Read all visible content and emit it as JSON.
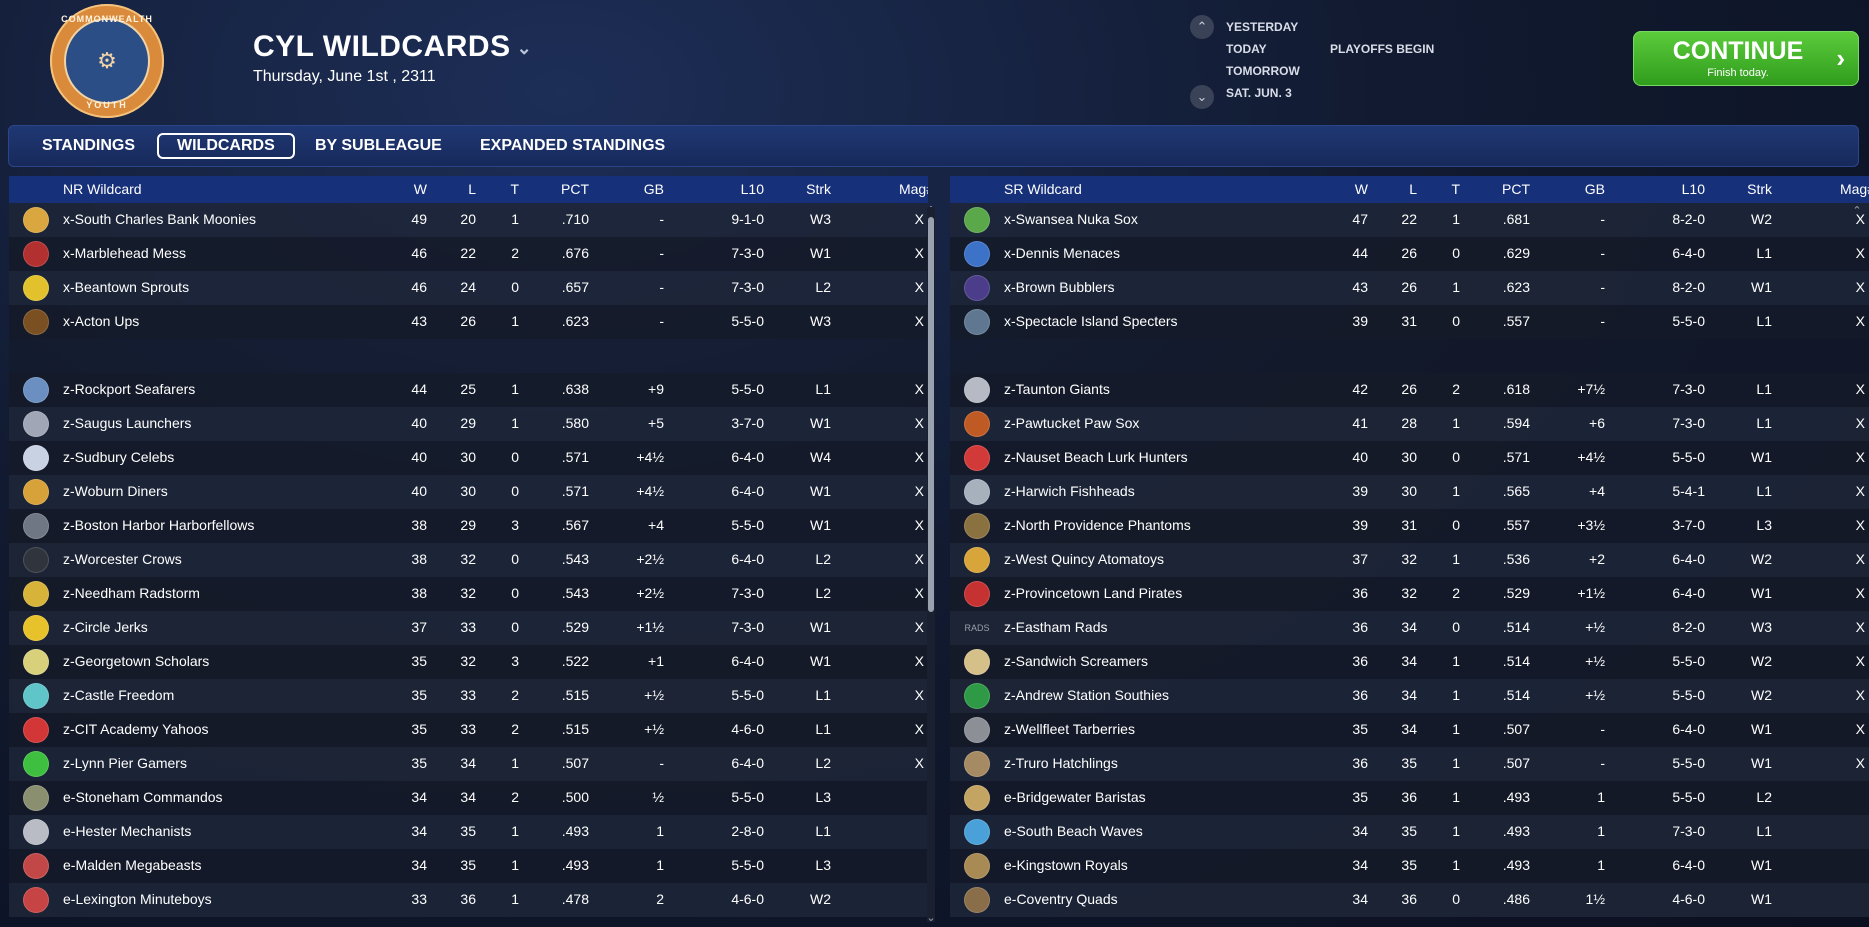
{
  "header": {
    "title": "CYL WILDCARDS",
    "date": "Thursday, June 1st , 2311",
    "logo": {
      "top_text": "COMMONWEALTH",
      "bottom_text": "YOUTH",
      "icon": "eagle-seal-icon"
    }
  },
  "day_nav": {
    "days": [
      "YESTERDAY",
      "TODAY",
      "TOMORROW",
      "SAT. JUN. 3"
    ],
    "today_event": "PLAYOFFS BEGIN"
  },
  "continue": {
    "label": "CONTINUE",
    "sub": "Finish today."
  },
  "tabs": [
    "STANDINGS",
    "WILDCARDS",
    "BY SUBLEAGUE",
    "EXPANDED STANDINGS"
  ],
  "left": {
    "headers": {
      "team": "NR  Wildcard",
      "w": "W",
      "l": "L",
      "t": "T",
      "pct": "PCT",
      "gb": "GB",
      "l10": "L10",
      "strk": "Strk",
      "mag": "Mag#"
    },
    "rows": [
      {
        "team": "x-South Charles Bank Moonies",
        "w": "49",
        "l": "20",
        "t": "1",
        "pct": ".710",
        "gb": "-",
        "l10": "9-1-0",
        "strk": "W3",
        "mag": "X",
        "icon": "moon-icon",
        "color": "#d9a640"
      },
      {
        "team": "x-Marblehead Mess",
        "w": "46",
        "l": "22",
        "t": "2",
        "pct": ".676",
        "gb": "-",
        "l10": "7-3-0",
        "strk": "W1",
        "mag": "X",
        "icon": "monster-icon",
        "color": "#b23030"
      },
      {
        "team": "x-Beantown Sprouts",
        "w": "46",
        "l": "24",
        "t": "0",
        "pct": ".657",
        "gb": "-",
        "l10": "7-3-0",
        "strk": "L2",
        "mag": "X",
        "icon": "sprout-icon",
        "color": "#e2c22c"
      },
      {
        "team": "x-Acton Ups",
        "w": "43",
        "l": "26",
        "t": "1",
        "pct": ".623",
        "gb": "-",
        "l10": "5-5-0",
        "strk": "W3",
        "mag": "X",
        "icon": "ups-shield-icon",
        "color": "#7a4f22"
      },
      {
        "team": "z-Rockport Seafarers",
        "w": "44",
        "l": "25",
        "t": "1",
        "pct": ".638",
        "gb": "+9",
        "l10": "5-5-0",
        "strk": "L1",
        "mag": "X",
        "icon": "anchor-icon",
        "color": "#6a8fc0"
      },
      {
        "team": "z-Saugus Launchers",
        "w": "40",
        "l": "29",
        "t": "1",
        "pct": ".580",
        "gb": "+5",
        "l10": "3-7-0",
        "strk": "W1",
        "mag": "X",
        "icon": "rocket-icon",
        "color": "#a0a6b5"
      },
      {
        "team": "z-Sudbury Celebs",
        "w": "40",
        "l": "30",
        "t": "0",
        "pct": ".571",
        "gb": "+4½",
        "l10": "6-4-0",
        "strk": "W4",
        "mag": "X",
        "icon": "star-icon",
        "color": "#c9d2e3"
      },
      {
        "team": "z-Woburn Diners",
        "w": "40",
        "l": "30",
        "t": "0",
        "pct": ".571",
        "gb": "+4½",
        "l10": "6-4-0",
        "strk": "W1",
        "mag": "X",
        "icon": "diner-icon",
        "color": "#d8a23a"
      },
      {
        "team": "z-Boston Harbor Harborfellows",
        "w": "38",
        "l": "29",
        "t": "3",
        "pct": ".567",
        "gb": "+4",
        "l10": "5-5-0",
        "strk": "W1",
        "mag": "X",
        "icon": "harbor-icon",
        "color": "#707784"
      },
      {
        "team": "z-Worcester Crows",
        "w": "38",
        "l": "32",
        "t": "0",
        "pct": ".543",
        "gb": "+2½",
        "l10": "6-4-0",
        "strk": "L2",
        "mag": "X",
        "icon": "crow-icon",
        "color": "#30343d"
      },
      {
        "team": "z-Needham Radstorm",
        "w": "38",
        "l": "32",
        "t": "0",
        "pct": ".543",
        "gb": "+2½",
        "l10": "7-3-0",
        "strk": "L2",
        "mag": "X",
        "icon": "radiation-icon",
        "color": "#d7b33a"
      },
      {
        "team": "z-Circle Jerks",
        "w": "37",
        "l": "33",
        "t": "0",
        "pct": ".529",
        "gb": "+1½",
        "l10": "7-3-0",
        "strk": "W1",
        "mag": "X",
        "icon": "circle-c-icon",
        "color": "#e7c22a"
      },
      {
        "team": "z-Georgetown Scholars",
        "w": "35",
        "l": "32",
        "t": "3",
        "pct": ".522",
        "gb": "+1",
        "l10": "6-4-0",
        "strk": "W1",
        "mag": "X",
        "icon": "wing-icon",
        "color": "#d8d07a"
      },
      {
        "team": "z-Castle Freedom",
        "w": "35",
        "l": "33",
        "t": "2",
        "pct": ".515",
        "gb": "+½",
        "l10": "5-5-0",
        "strk": "L1",
        "mag": "X",
        "icon": "tower-icon",
        "color": "#5fc5c8"
      },
      {
        "team": "z-CIT Academy Yahoos",
        "w": "35",
        "l": "33",
        "t": "2",
        "pct": ".515",
        "gb": "+½",
        "l10": "4-6-0",
        "strk": "L1",
        "mag": "X",
        "icon": "skull-icon",
        "color": "#d23636"
      },
      {
        "team": "z-Lynn Pier Gamers",
        "w": "35",
        "l": "34",
        "t": "1",
        "pct": ".507",
        "gb": "-",
        "l10": "6-4-0",
        "strk": "L2",
        "mag": "X",
        "icon": "gamer-icon",
        "color": "#3fbf3f"
      },
      {
        "team": "e-Stoneham Commandos",
        "w": "34",
        "l": "34",
        "t": "2",
        "pct": ".500",
        "gb": "½",
        "l10": "5-5-0",
        "strk": "L3",
        "mag": "",
        "icon": "soldier-icon",
        "color": "#8a8f70"
      },
      {
        "team": "e-Hester Mechanists",
        "w": "34",
        "l": "35",
        "t": "1",
        "pct": ".493",
        "gb": "1",
        "l10": "2-8-0",
        "strk": "L1",
        "mag": "",
        "icon": "robot-icon",
        "color": "#b9bcc4"
      },
      {
        "team": "e-Malden Megabeasts",
        "w": "34",
        "l": "35",
        "t": "1",
        "pct": ".493",
        "gb": "1",
        "l10": "5-5-0",
        "strk": "L3",
        "mag": "",
        "icon": "beast-icon",
        "color": "#c24848"
      },
      {
        "team": "e-Lexington Minuteboys",
        "w": "33",
        "l": "36",
        "t": "1",
        "pct": ".478",
        "gb": "2",
        "l10": "4-6-0",
        "strk": "W2",
        "mag": "",
        "icon": "minuteman-icon",
        "color": "#c74444"
      }
    ]
  },
  "right": {
    "headers": {
      "team": "SR  Wildcard",
      "w": "W",
      "l": "L",
      "t": "T",
      "pct": "PCT",
      "gb": "GB",
      "l10": "L10",
      "strk": "Strk",
      "mag": "Mag#"
    },
    "rows": [
      {
        "team": "x-Swansea Nuka Sox",
        "w": "47",
        "l": "22",
        "t": "1",
        "pct": ".681",
        "gb": "-",
        "l10": "8-2-0",
        "strk": "W2",
        "mag": "X",
        "icon": "lizard-icon",
        "color": "#5aa84a"
      },
      {
        "team": "x-Dennis Menaces",
        "w": "44",
        "l": "26",
        "t": "0",
        "pct": ".629",
        "gb": "-",
        "l10": "6-4-0",
        "strk": "L1",
        "mag": "X",
        "icon": "kid-icon",
        "color": "#3c72c8"
      },
      {
        "team": "x-Brown Bubblers",
        "w": "43",
        "l": "26",
        "t": "1",
        "pct": ".623",
        "gb": "-",
        "l10": "8-2-0",
        "strk": "W1",
        "mag": "X",
        "icon": "b-letter-icon",
        "color": "#4b3d8a"
      },
      {
        "team": "x-Spectacle Island Specters",
        "w": "39",
        "l": "31",
        "t": "0",
        "pct": ".557",
        "gb": "-",
        "l10": "5-5-0",
        "strk": "L1",
        "mag": "X",
        "icon": "ghost-icon",
        "color": "#5f7790"
      },
      {
        "team": "z-Taunton Giants",
        "w": "42",
        "l": "26",
        "t": "2",
        "pct": ".618",
        "gb": "+7½",
        "l10": "7-3-0",
        "strk": "L1",
        "mag": "X",
        "icon": "giant-icon",
        "color": "#b5bac4"
      },
      {
        "team": "z-Pawtucket Paw Sox",
        "w": "41",
        "l": "28",
        "t": "1",
        "pct": ".594",
        "gb": "+6",
        "l10": "7-3-0",
        "strk": "L1",
        "mag": "X",
        "icon": "paw-icon",
        "color": "#c05a24"
      },
      {
        "team": "z-Nauset Beach Lurk Hunters",
        "w": "40",
        "l": "30",
        "t": "0",
        "pct": ".571",
        "gb": "+4½",
        "l10": "5-5-0",
        "strk": "W1",
        "mag": "X",
        "icon": "crab-icon",
        "color": "#d23a3a"
      },
      {
        "team": "z-Harwich Fishheads",
        "w": "39",
        "l": "30",
        "t": "1",
        "pct": ".565",
        "gb": "+4",
        "l10": "5-4-1",
        "strk": "L1",
        "mag": "X",
        "icon": "fish-icon",
        "color": "#a7b0bd"
      },
      {
        "team": "z-North Providence Phantoms",
        "w": "39",
        "l": "31",
        "t": "0",
        "pct": ".557",
        "gb": "+3½",
        "l10": "3-7-0",
        "strk": "L3",
        "mag": "X",
        "icon": "phantom-icon",
        "color": "#8a7140"
      },
      {
        "team": "z-West Quincy Atomatoys",
        "w": "37",
        "l": "32",
        "t": "1",
        "pct": ".536",
        "gb": "+2",
        "l10": "6-4-0",
        "strk": "W2",
        "mag": "X",
        "icon": "toy-robot-icon",
        "color": "#d7a53a"
      },
      {
        "team": "z-Provincetown Land Pirates",
        "w": "36",
        "l": "32",
        "t": "2",
        "pct": ".529",
        "gb": "+1½",
        "l10": "6-4-0",
        "strk": "W1",
        "mag": "X",
        "icon": "pirate-icon",
        "color": "#c63232"
      },
      {
        "team": "z-Eastham Rads",
        "w": "36",
        "l": "34",
        "t": "0",
        "pct": ".514",
        "gb": "+½",
        "l10": "8-2-0",
        "strk": "W3",
        "mag": "X",
        "icon": "rads-wordmark-icon",
        "color": "#9aa0aa",
        "logo_text": "RADS"
      },
      {
        "team": "z-Sandwich Screamers",
        "w": "36",
        "l": "34",
        "t": "1",
        "pct": ".514",
        "gb": "+½",
        "l10": "5-5-0",
        "strk": "W2",
        "mag": "X",
        "icon": "sandwich-icon",
        "color": "#d6c08a"
      },
      {
        "team": "z-Andrew Station Southies",
        "w": "36",
        "l": "34",
        "t": "1",
        "pct": ".514",
        "gb": "+½",
        "l10": "5-5-0",
        "strk": "W2",
        "mag": "X",
        "icon": "shamrock-icon",
        "color": "#2f9a46"
      },
      {
        "team": "z-Wellfleet Tarberries",
        "w": "35",
        "l": "34",
        "t": "1",
        "pct": ".507",
        "gb": "-",
        "l10": "6-4-0",
        "strk": "W1",
        "mag": "X",
        "icon": "bird-icon",
        "color": "#8c8f96"
      },
      {
        "team": "z-Truro Hatchlings",
        "w": "36",
        "l": "35",
        "t": "1",
        "pct": ".507",
        "gb": "-",
        "l10": "5-5-0",
        "strk": "W1",
        "mag": "X",
        "icon": "hatchling-icon",
        "color": "#a68a63"
      },
      {
        "team": "e-Bridgewater Baristas",
        "w": "35",
        "l": "36",
        "t": "1",
        "pct": ".493",
        "gb": "1",
        "l10": "5-5-0",
        "strk": "L2",
        "mag": "",
        "icon": "coffee-icon",
        "color": "#c4a462"
      },
      {
        "team": "e-South Beach Waves",
        "w": "34",
        "l": "35",
        "t": "1",
        "pct": ".493",
        "gb": "1",
        "l10": "7-3-0",
        "strk": "L1",
        "mag": "",
        "icon": "wave-icon",
        "color": "#4aa0d8"
      },
      {
        "team": "e-Kingstown Royals",
        "w": "34",
        "l": "35",
        "t": "1",
        "pct": ".493",
        "gb": "1",
        "l10": "6-4-0",
        "strk": "W1",
        "mag": "",
        "icon": "crown-icon",
        "color": "#a88a55"
      },
      {
        "team": "e-Coventry Quads",
        "w": "34",
        "l": "36",
        "t": "0",
        "pct": ".486",
        "gb": "1½",
        "l10": "4-6-0",
        "strk": "W1",
        "mag": "",
        "icon": "quads-icon",
        "color": "#8a6e4a"
      }
    ]
  }
}
